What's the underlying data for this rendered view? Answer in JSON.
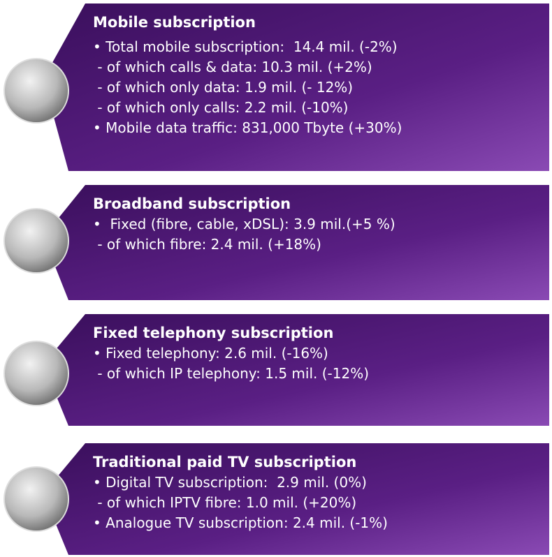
{
  "panels": [
    {
      "title": "Mobile subscription",
      "lines": [
        "• Total mobile subscription:  14.4 mil. (-2%)",
        " - of which calls & data: 10.3 mil. (+2%)",
        " - of which only data: 1.9 mil. (- 12%)",
        " - of which only calls: 2.2 mil. (-10%)",
        "• Mobile data traffic: 831,000 Tbyte (+30%)"
      ]
    },
    {
      "title": "Broadband subscription",
      "lines": [
        "•  Fixed (fibre, cable, xDSL): 3.9 mil.(+5 %)",
        " - of which fibre: 2.4 mil. (+18%)"
      ]
    },
    {
      "title": "Fixed telephony subscription",
      "lines": [
        "• Fixed telephony: 2.6 mil. (-16%)",
        " - of which IP telephony: 1.5 mil. (-12%)"
      ]
    },
    {
      "title": "Traditional paid TV subscription",
      "lines": [
        "• Digital TV subscription:  2.9 mil. (0%)",
        " - of which IPTV fibre: 1.0 mil. (+20%)",
        "• Analogue TV subscription: 2.4 mil. (-1%)"
      ]
    }
  ]
}
